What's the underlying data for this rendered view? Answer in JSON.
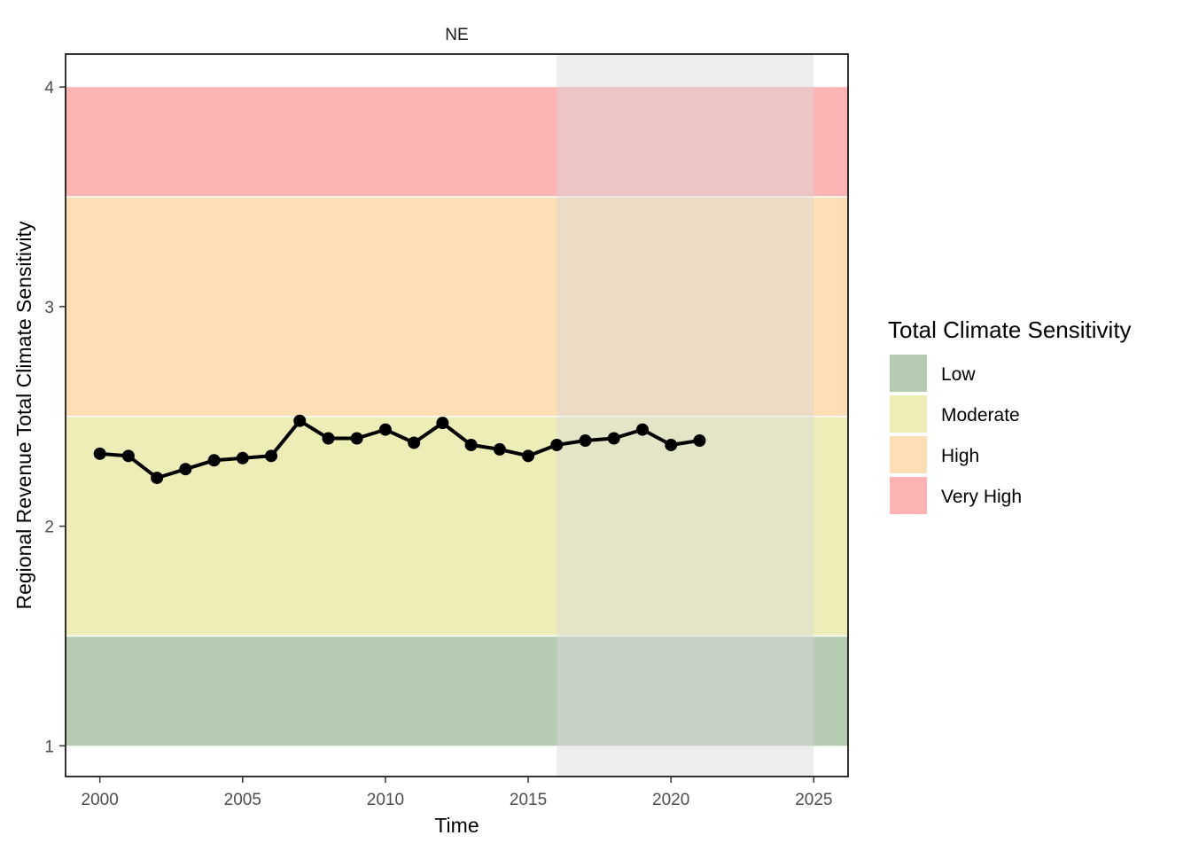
{
  "chart_data": {
    "type": "line",
    "facet_title": "NE",
    "xlabel": "Time",
    "ylabel": "Regional Revenue Total Climate Sensitivity",
    "xlim": [
      1998.8,
      2026.2
    ],
    "ylim": [
      0.86,
      4.15
    ],
    "x_ticks": [
      2000,
      2005,
      2010,
      2015,
      2020,
      2025
    ],
    "y_ticks": [
      1,
      2,
      3,
      4
    ],
    "x_tick_labels": [
      "2000",
      "2005",
      "2010",
      "2015",
      "2020",
      "2025"
    ],
    "y_tick_labels": [
      "1",
      "2",
      "3",
      "4"
    ],
    "grid": false,
    "shaded_period": {
      "x_start": 2016,
      "x_end": 2025,
      "color": "#d9d9d9"
    },
    "bands": [
      {
        "name": "Low",
        "y_start": 1.0,
        "y_end": 1.5,
        "color": "#b5cbb2"
      },
      {
        "name": "Moderate",
        "y_start": 1.5,
        "y_end": 2.5,
        "color": "#ededb8"
      },
      {
        "name": "High",
        "y_start": 2.5,
        "y_end": 3.5,
        "color": "#fedfb5"
      },
      {
        "name": "Very High",
        "y_start": 3.5,
        "y_end": 4.0,
        "color": "#feb4b5"
      }
    ],
    "series": [
      {
        "x": [
          2000,
          2001,
          2002,
          2003,
          2004,
          2005,
          2006,
          2007,
          2008,
          2009,
          2010,
          2011,
          2012,
          2013,
          2014,
          2015,
          2016,
          2017,
          2018,
          2019,
          2020,
          2021
        ],
        "values": [
          2.33,
          2.32,
          2.22,
          2.26,
          2.3,
          2.31,
          2.32,
          2.48,
          2.4,
          2.4,
          2.44,
          2.38,
          2.47,
          2.37,
          2.35,
          2.32,
          2.37,
          2.39,
          2.4,
          2.44,
          2.37,
          2.39
        ],
        "color": "#000000"
      }
    ],
    "legend": {
      "title": "Total Climate Sensitivity",
      "position": "right",
      "entries": [
        "Low",
        "Moderate",
        "High",
        "Very High"
      ]
    }
  }
}
